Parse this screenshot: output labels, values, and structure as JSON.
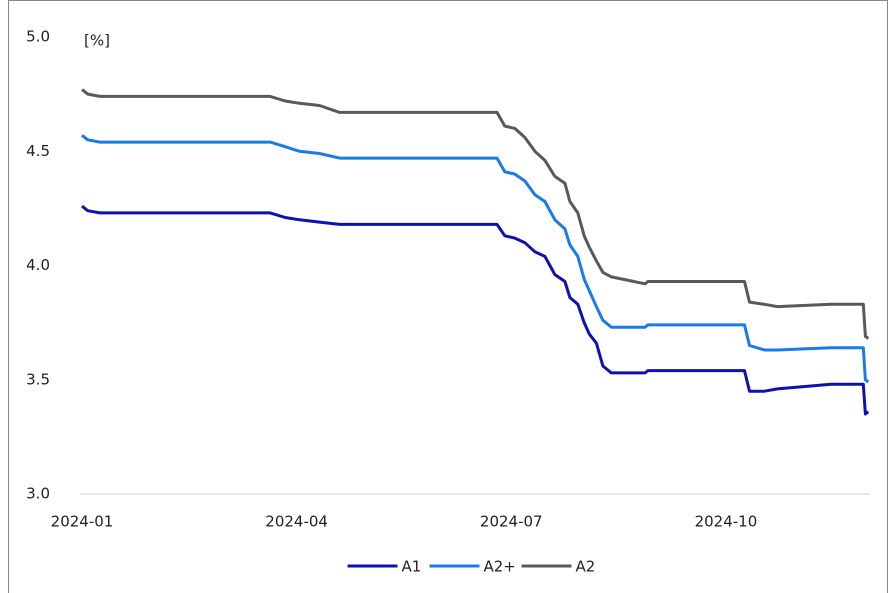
{
  "chart_data": {
    "type": "line",
    "unit_label": "[%]",
    "x": [
      0,
      0.08,
      0.25,
      2.63,
      2.84,
      3.04,
      3.32,
      3.6,
      5.8,
      5.91,
      6.05,
      6.19,
      6.33,
      6.47,
      6.61,
      6.75,
      6.82,
      6.93,
      7.02,
      7.09,
      7.19,
      7.28,
      7.4,
      7.87,
      7.91,
      9.26,
      9.33,
      9.54,
      9.72,
      10.47,
      10.92,
      10.95,
      10.99
    ],
    "series": [
      {
        "name": "A1",
        "color": "#1010b0",
        "values": [
          4.26,
          4.24,
          4.23,
          4.23,
          4.21,
          4.2,
          4.19,
          4.18,
          4.18,
          4.13,
          4.12,
          4.1,
          4.06,
          4.04,
          3.96,
          3.93,
          3.86,
          3.83,
          3.75,
          3.7,
          3.66,
          3.56,
          3.53,
          3.53,
          3.54,
          3.54,
          3.45,
          3.45,
          3.46,
          3.48,
          3.48,
          3.35,
          3.36
        ]
      },
      {
        "name": "A2+",
        "color": "#1a7ae8",
        "values": [
          4.57,
          4.55,
          4.54,
          4.54,
          4.52,
          4.5,
          4.49,
          4.47,
          4.47,
          4.41,
          4.4,
          4.37,
          4.31,
          4.28,
          4.2,
          4.16,
          4.09,
          4.04,
          3.94,
          3.89,
          3.82,
          3.76,
          3.73,
          3.73,
          3.74,
          3.74,
          3.65,
          3.63,
          3.63,
          3.64,
          3.64,
          3.5,
          3.49
        ]
      },
      {
        "name": "A2",
        "color": "#595959",
        "values": [
          4.77,
          4.75,
          4.74,
          4.74,
          4.72,
          4.71,
          4.7,
          4.67,
          4.67,
          4.61,
          4.6,
          4.56,
          4.5,
          4.46,
          4.39,
          4.36,
          4.28,
          4.23,
          4.13,
          4.08,
          4.02,
          3.97,
          3.95,
          3.92,
          3.93,
          3.93,
          3.84,
          3.83,
          3.82,
          3.83,
          3.83,
          3.69,
          3.68
        ]
      }
    ],
    "xlim": [
      0,
      11
    ],
    "xticks": [
      {
        "value": 0,
        "label": "2024-01"
      },
      {
        "value": 3,
        "label": "2024-04"
      },
      {
        "value": 6,
        "label": "2024-07"
      },
      {
        "value": 9,
        "label": "2024-10"
      }
    ],
    "ylim": [
      3.0,
      5.0
    ],
    "yticks": [
      {
        "value": 3.0,
        "label": "3.0"
      },
      {
        "value": 3.5,
        "label": "3.5"
      },
      {
        "value": 4.0,
        "label": "4.0"
      },
      {
        "value": 4.5,
        "label": "4.5"
      },
      {
        "value": 5.0,
        "label": "5.0"
      }
    ],
    "legend": "bottom"
  }
}
